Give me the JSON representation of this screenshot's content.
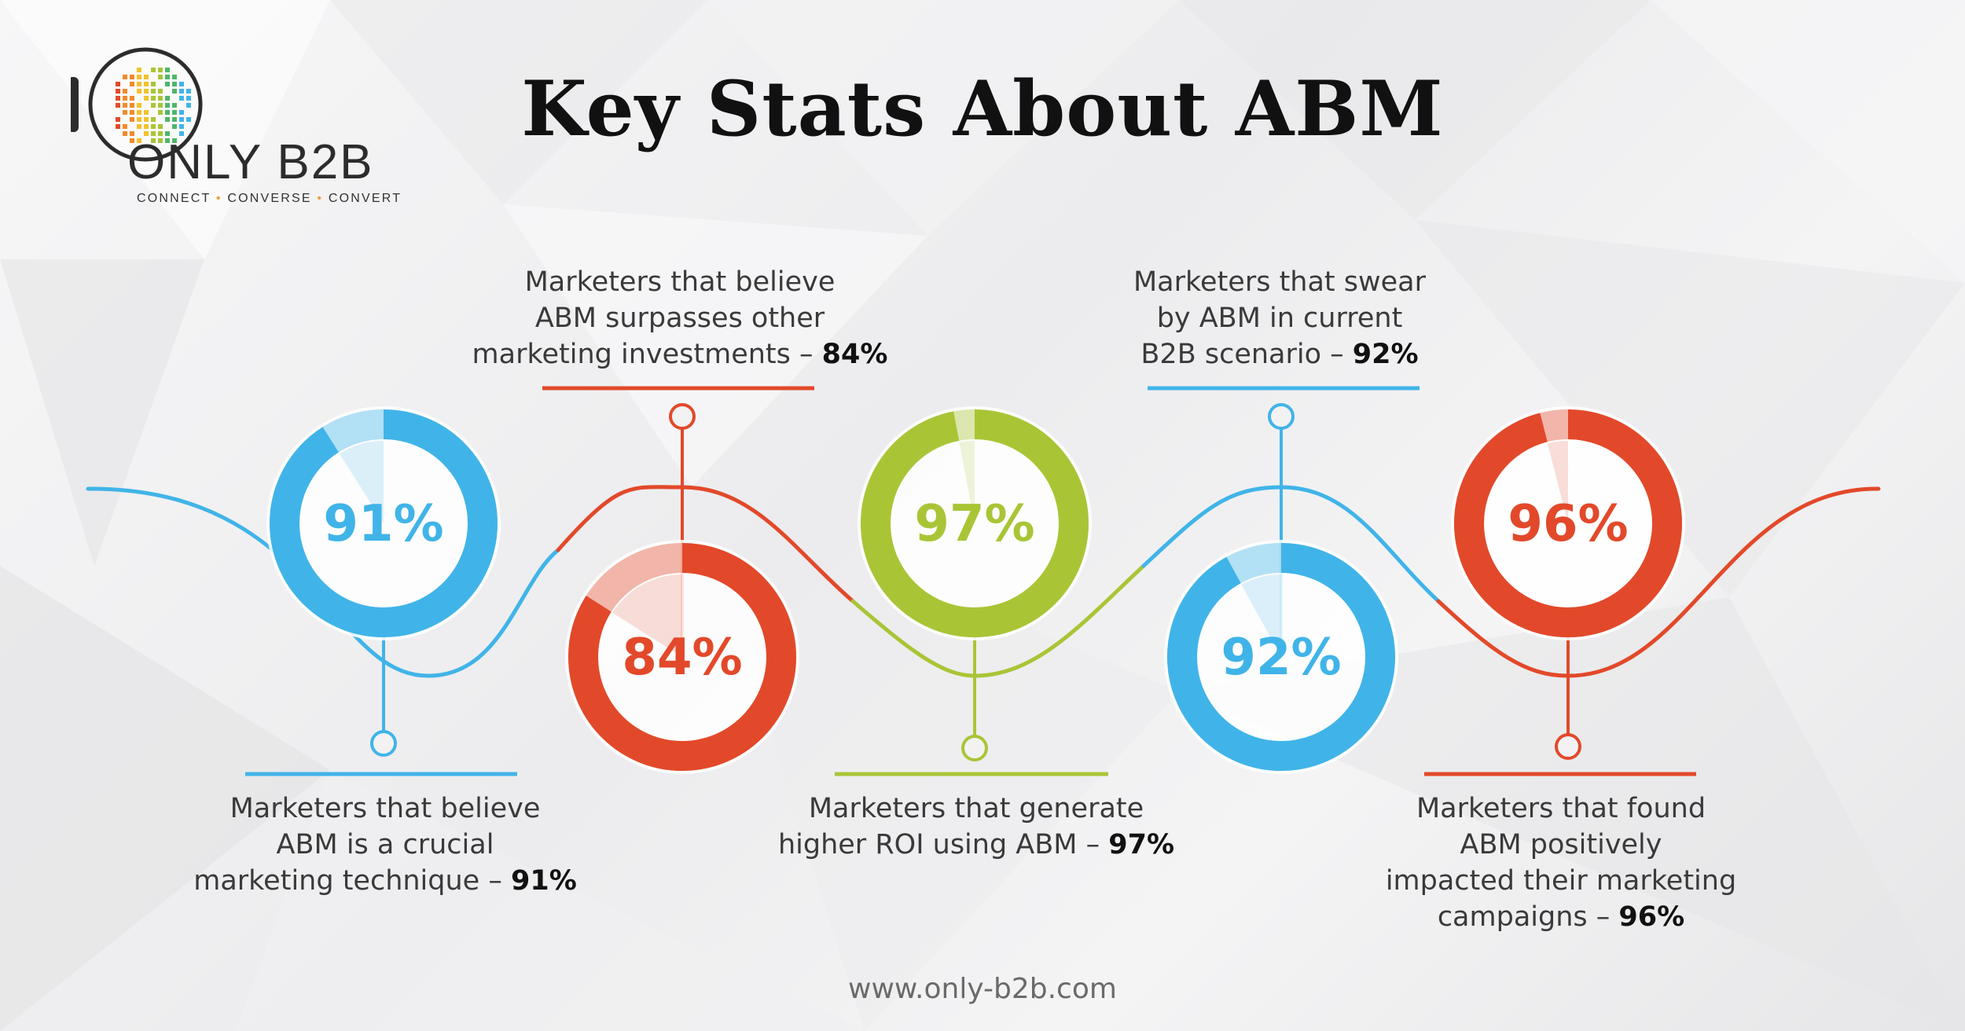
{
  "title": "Key Stats About ABM",
  "logo": {
    "brand": "ONLY B2B",
    "tagline": [
      "CONNECT",
      "CONVERSE",
      "CONVERT"
    ]
  },
  "footer": "www.only-b2b.com",
  "colors": {
    "blue": "#40b4e8",
    "red": "#e2492a",
    "green": "#a9c536",
    "text": "#3a3a3a"
  },
  "chart_data": {
    "type": "pie",
    "title": "Key Stats About ABM",
    "unit": "%",
    "items": [
      {
        "value": 91,
        "label": "91%",
        "color": "#40b4e8",
        "caption_lines": [
          "Marketers that believe",
          "ABM is a crucial",
          "marketing technique –"
        ],
        "caption_value": "91%"
      },
      {
        "value": 84,
        "label": "84%",
        "color": "#e2492a",
        "caption_lines": [
          "Marketers that believe",
          "ABM surpasses other",
          "marketing investments –"
        ],
        "caption_value": "84%"
      },
      {
        "value": 97,
        "label": "97%",
        "color": "#a9c536",
        "caption_lines": [
          "Marketers that generate",
          "higher ROI using ABM –"
        ],
        "caption_value": "97%"
      },
      {
        "value": 92,
        "label": "92%",
        "color": "#40b4e8",
        "caption_lines": [
          "Marketers that swear",
          "by ABM in current",
          "B2B scenario –"
        ],
        "caption_value": "92%"
      },
      {
        "value": 96,
        "label": "96%",
        "color": "#e2492a",
        "caption_lines": [
          "Marketers that found",
          "ABM positively",
          "impacted their marketing",
          "campaigns –"
        ],
        "caption_value": "96%"
      }
    ]
  }
}
